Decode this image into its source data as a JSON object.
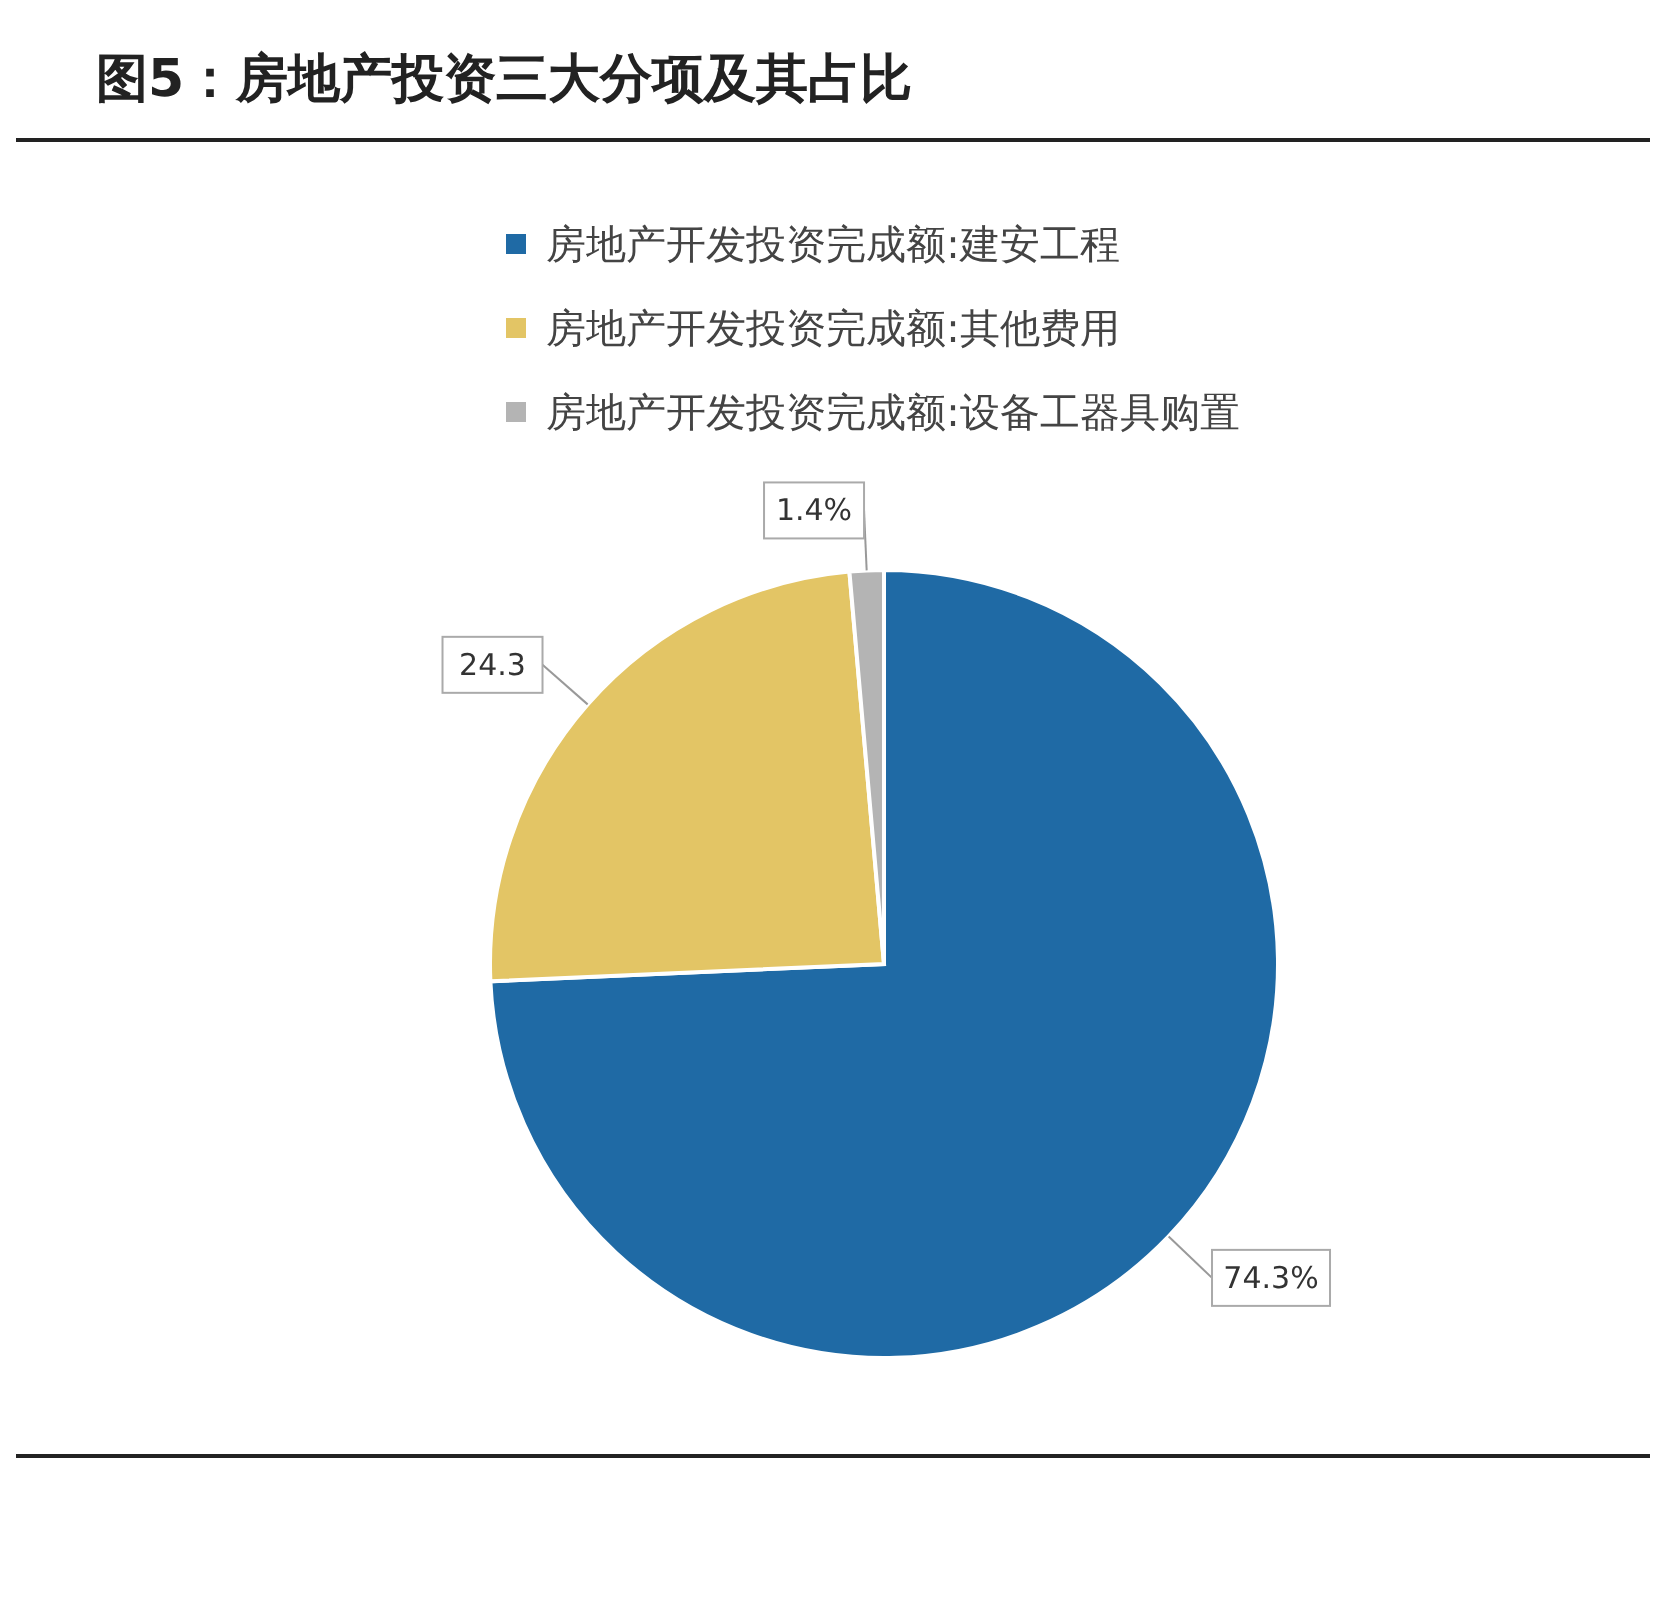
{
  "chart_data": {
    "type": "pie",
    "title": "图5：房地产投资三大分项及其占比",
    "categories": [
      "房地产开发投资完成额:建安工程",
      "房地产开发投资完成额:其他费用",
      "房地产开发投资完成额:设备工器具购置"
    ],
    "values": [
      74.3,
      24.3,
      1.4
    ],
    "value_labels": [
      "74.3%",
      "24.3",
      "1.4%"
    ],
    "colors": [
      "#1f6aa5",
      "#e3c565",
      "#b4b4b4"
    ],
    "legend": "top"
  }
}
